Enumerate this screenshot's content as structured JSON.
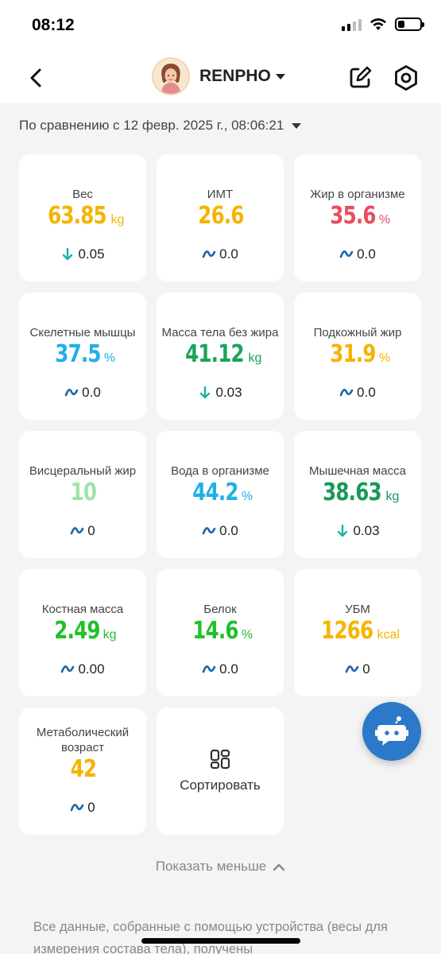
{
  "status": {
    "time": "08:12"
  },
  "header": {
    "profile_name": "RENPHO"
  },
  "compare": {
    "text": "По сравнению с 12 февр. 2025 г., 08:06:21"
  },
  "metrics": [
    {
      "label": "Вес",
      "value": "63.85",
      "unit": "kg",
      "color": "#f5b400",
      "change": "0.05",
      "trend": "down"
    },
    {
      "label": "ИМТ",
      "value": "26.6",
      "unit": "",
      "color": "#f5b400",
      "change": "0.0",
      "trend": "flat"
    },
    {
      "label": "Жир в организме",
      "value": "35.6",
      "unit": "%",
      "color": "#e94b5f",
      "change": "0.0",
      "trend": "flat"
    },
    {
      "label": "Скелетные мышцы",
      "value": "37.5",
      "unit": "%",
      "color": "#1fb0e6",
      "change": "0.0",
      "trend": "flat"
    },
    {
      "label": "Масса тела без жира",
      "value": "41.12",
      "unit": "kg",
      "color": "#1aa35a",
      "change": "0.03",
      "trend": "down"
    },
    {
      "label": "Подкожный жир",
      "value": "31.9",
      "unit": "%",
      "color": "#f5b400",
      "change": "0.0",
      "trend": "flat"
    },
    {
      "label": "Висцеральный жир",
      "value": "10",
      "unit": "",
      "color": "#9fe3a8",
      "change": "0",
      "trend": "flat"
    },
    {
      "label": "Вода в организме",
      "value": "44.2",
      "unit": "%",
      "color": "#1fb0e6",
      "change": "0.0",
      "trend": "flat"
    },
    {
      "label": "Мышечная масса",
      "value": "38.63",
      "unit": "kg",
      "color": "#16995a",
      "change": "0.03",
      "trend": "down"
    },
    {
      "label": "Костная масса",
      "value": "2.49",
      "unit": "kg",
      "color": "#22c02a",
      "change": "0.00",
      "trend": "flat"
    },
    {
      "label": "Белок",
      "value": "14.6",
      "unit": "%",
      "color": "#22c02a",
      "change": "0.0",
      "trend": "flat"
    },
    {
      "label": "УБМ",
      "value": "1266",
      "unit": "kcal",
      "color": "#f5b400",
      "change": "0",
      "trend": "flat"
    },
    {
      "label": "Метаболический возраст",
      "value": "42",
      "unit": "",
      "color": "#f5b400",
      "change": "0",
      "trend": "flat"
    }
  ],
  "sort": {
    "label": "Сортировать"
  },
  "show_less": {
    "label": "Показать меньше"
  },
  "disclaimer": {
    "text": "Все данные, собранные с помощью устройства (весы для измерения состава тела), получены"
  },
  "colors": {
    "trend_down": "#19b3a3",
    "trend_flat": "#1b66a8",
    "fab": "#2b79c8"
  },
  "icons": {
    "back": "chevron-left-icon",
    "edit": "edit-icon",
    "settings": "settings-icon",
    "sort": "sort-grid-icon",
    "assistant": "robot-chat-icon"
  }
}
